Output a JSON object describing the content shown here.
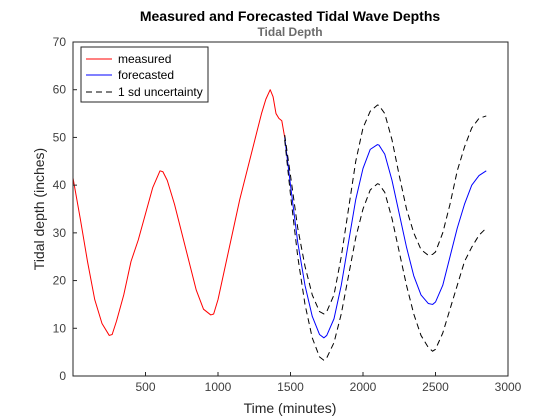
{
  "chart_data": {
    "type": "line",
    "title": "Measured and Forecasted Tidal Wave Depths",
    "subtitle": "Tidal Depth",
    "xlabel": "Time (minutes)",
    "ylabel": "Tidal depth (inches)",
    "xlim": [
      0,
      3000
    ],
    "ylim": [
      0,
      70
    ],
    "xticks": [
      500,
      1000,
      1500,
      2000,
      2500,
      3000
    ],
    "yticks": [
      0,
      10,
      20,
      30,
      40,
      50,
      60,
      70
    ],
    "xtick_labels": [
      "500",
      "1000",
      "1500",
      "2000",
      "2500",
      "3000"
    ],
    "ytick_labels": [
      "0",
      "10",
      "20",
      "30",
      "40",
      "50",
      "60",
      "70"
    ],
    "grid": false,
    "legend_position": "top-left",
    "legend": [
      "measured",
      "forecasted",
      "1 sd uncertainty"
    ],
    "series": [
      {
        "name": "measured",
        "color": "#ff0000",
        "style": "solid",
        "x": [
          0,
          50,
          100,
          150,
          200,
          250,
          270,
          300,
          350,
          400,
          450,
          500,
          550,
          600,
          620,
          650,
          700,
          750,
          800,
          850,
          900,
          950,
          970,
          1000,
          1050,
          1100,
          1150,
          1200,
          1250,
          1300,
          1330,
          1360,
          1380,
          1400,
          1420,
          1440,
          1460
        ],
        "y": [
          41.5,
          33,
          24,
          16,
          11,
          8.5,
          8.7,
          11.5,
          17,
          24,
          28.5,
          34,
          39.5,
          43,
          42.8,
          41,
          36,
          30,
          24,
          18,
          14,
          12.8,
          13,
          16,
          23,
          30,
          37,
          43,
          49,
          55,
          58,
          60,
          58.5,
          55,
          54,
          53.5,
          50
        ]
      },
      {
        "name": "forecasted",
        "color": "#0000ff",
        "style": "solid",
        "x": [
          1460,
          1500,
          1550,
          1600,
          1650,
          1700,
          1730,
          1750,
          1800,
          1850,
          1900,
          1950,
          2000,
          2050,
          2100,
          2110,
          2150,
          2200,
          2250,
          2300,
          2350,
          2400,
          2450,
          2480,
          2500,
          2550,
          2600,
          2650,
          2700,
          2750,
          2800,
          2850
        ],
        "y": [
          50,
          40,
          28,
          19,
          12.5,
          8.7,
          8,
          8.5,
          12,
          19,
          28,
          37,
          43.5,
          47.5,
          48.5,
          48.4,
          46.5,
          41,
          34,
          27,
          21,
          17,
          15.2,
          15,
          15.5,
          19,
          25,
          31,
          36,
          40,
          42,
          43
        ]
      },
      {
        "name": "1 sd uncertainty",
        "color": "#000000",
        "style": "dashed",
        "x": [
          1460,
          1500,
          1550,
          1600,
          1650,
          1700,
          1730,
          1750,
          1800,
          1850,
          1900,
          1950,
          2000,
          2050,
          2100,
          2110,
          2150,
          2200,
          2250,
          2300,
          2350,
          2400,
          2450,
          2480,
          2500,
          2550,
          2600,
          2650,
          2700,
          2750,
          2800,
          2850
        ],
        "y": [
          50.5,
          42,
          31,
          23,
          17,
          13.5,
          13,
          13.5,
          17,
          25,
          35,
          45,
          52,
          55.5,
          56.8,
          56.7,
          55,
          49.5,
          42,
          35,
          30,
          26.5,
          25.3,
          25.5,
          26,
          30,
          36,
          43,
          48,
          52,
          54,
          54.5
        ]
      },
      {
        "name": "1 sd uncertainty",
        "color": "#000000",
        "style": "dashed",
        "x": [
          1460,
          1500,
          1550,
          1600,
          1650,
          1700,
          1730,
          1750,
          1800,
          1850,
          1900,
          1950,
          2000,
          2050,
          2100,
          2110,
          2150,
          2200,
          2250,
          2300,
          2350,
          2400,
          2450,
          2480,
          2500,
          2550,
          2600,
          2650,
          2700,
          2750,
          2800,
          2850
        ],
        "y": [
          49.5,
          38,
          25,
          15,
          8,
          4,
          3.3,
          3.8,
          7,
          13,
          21,
          29,
          35,
          39,
          40.3,
          40.2,
          38.5,
          33,
          26,
          19,
          13,
          8.5,
          6,
          5.2,
          5.6,
          9,
          14,
          19,
          24,
          27,
          29.5,
          31
        ]
      }
    ]
  }
}
